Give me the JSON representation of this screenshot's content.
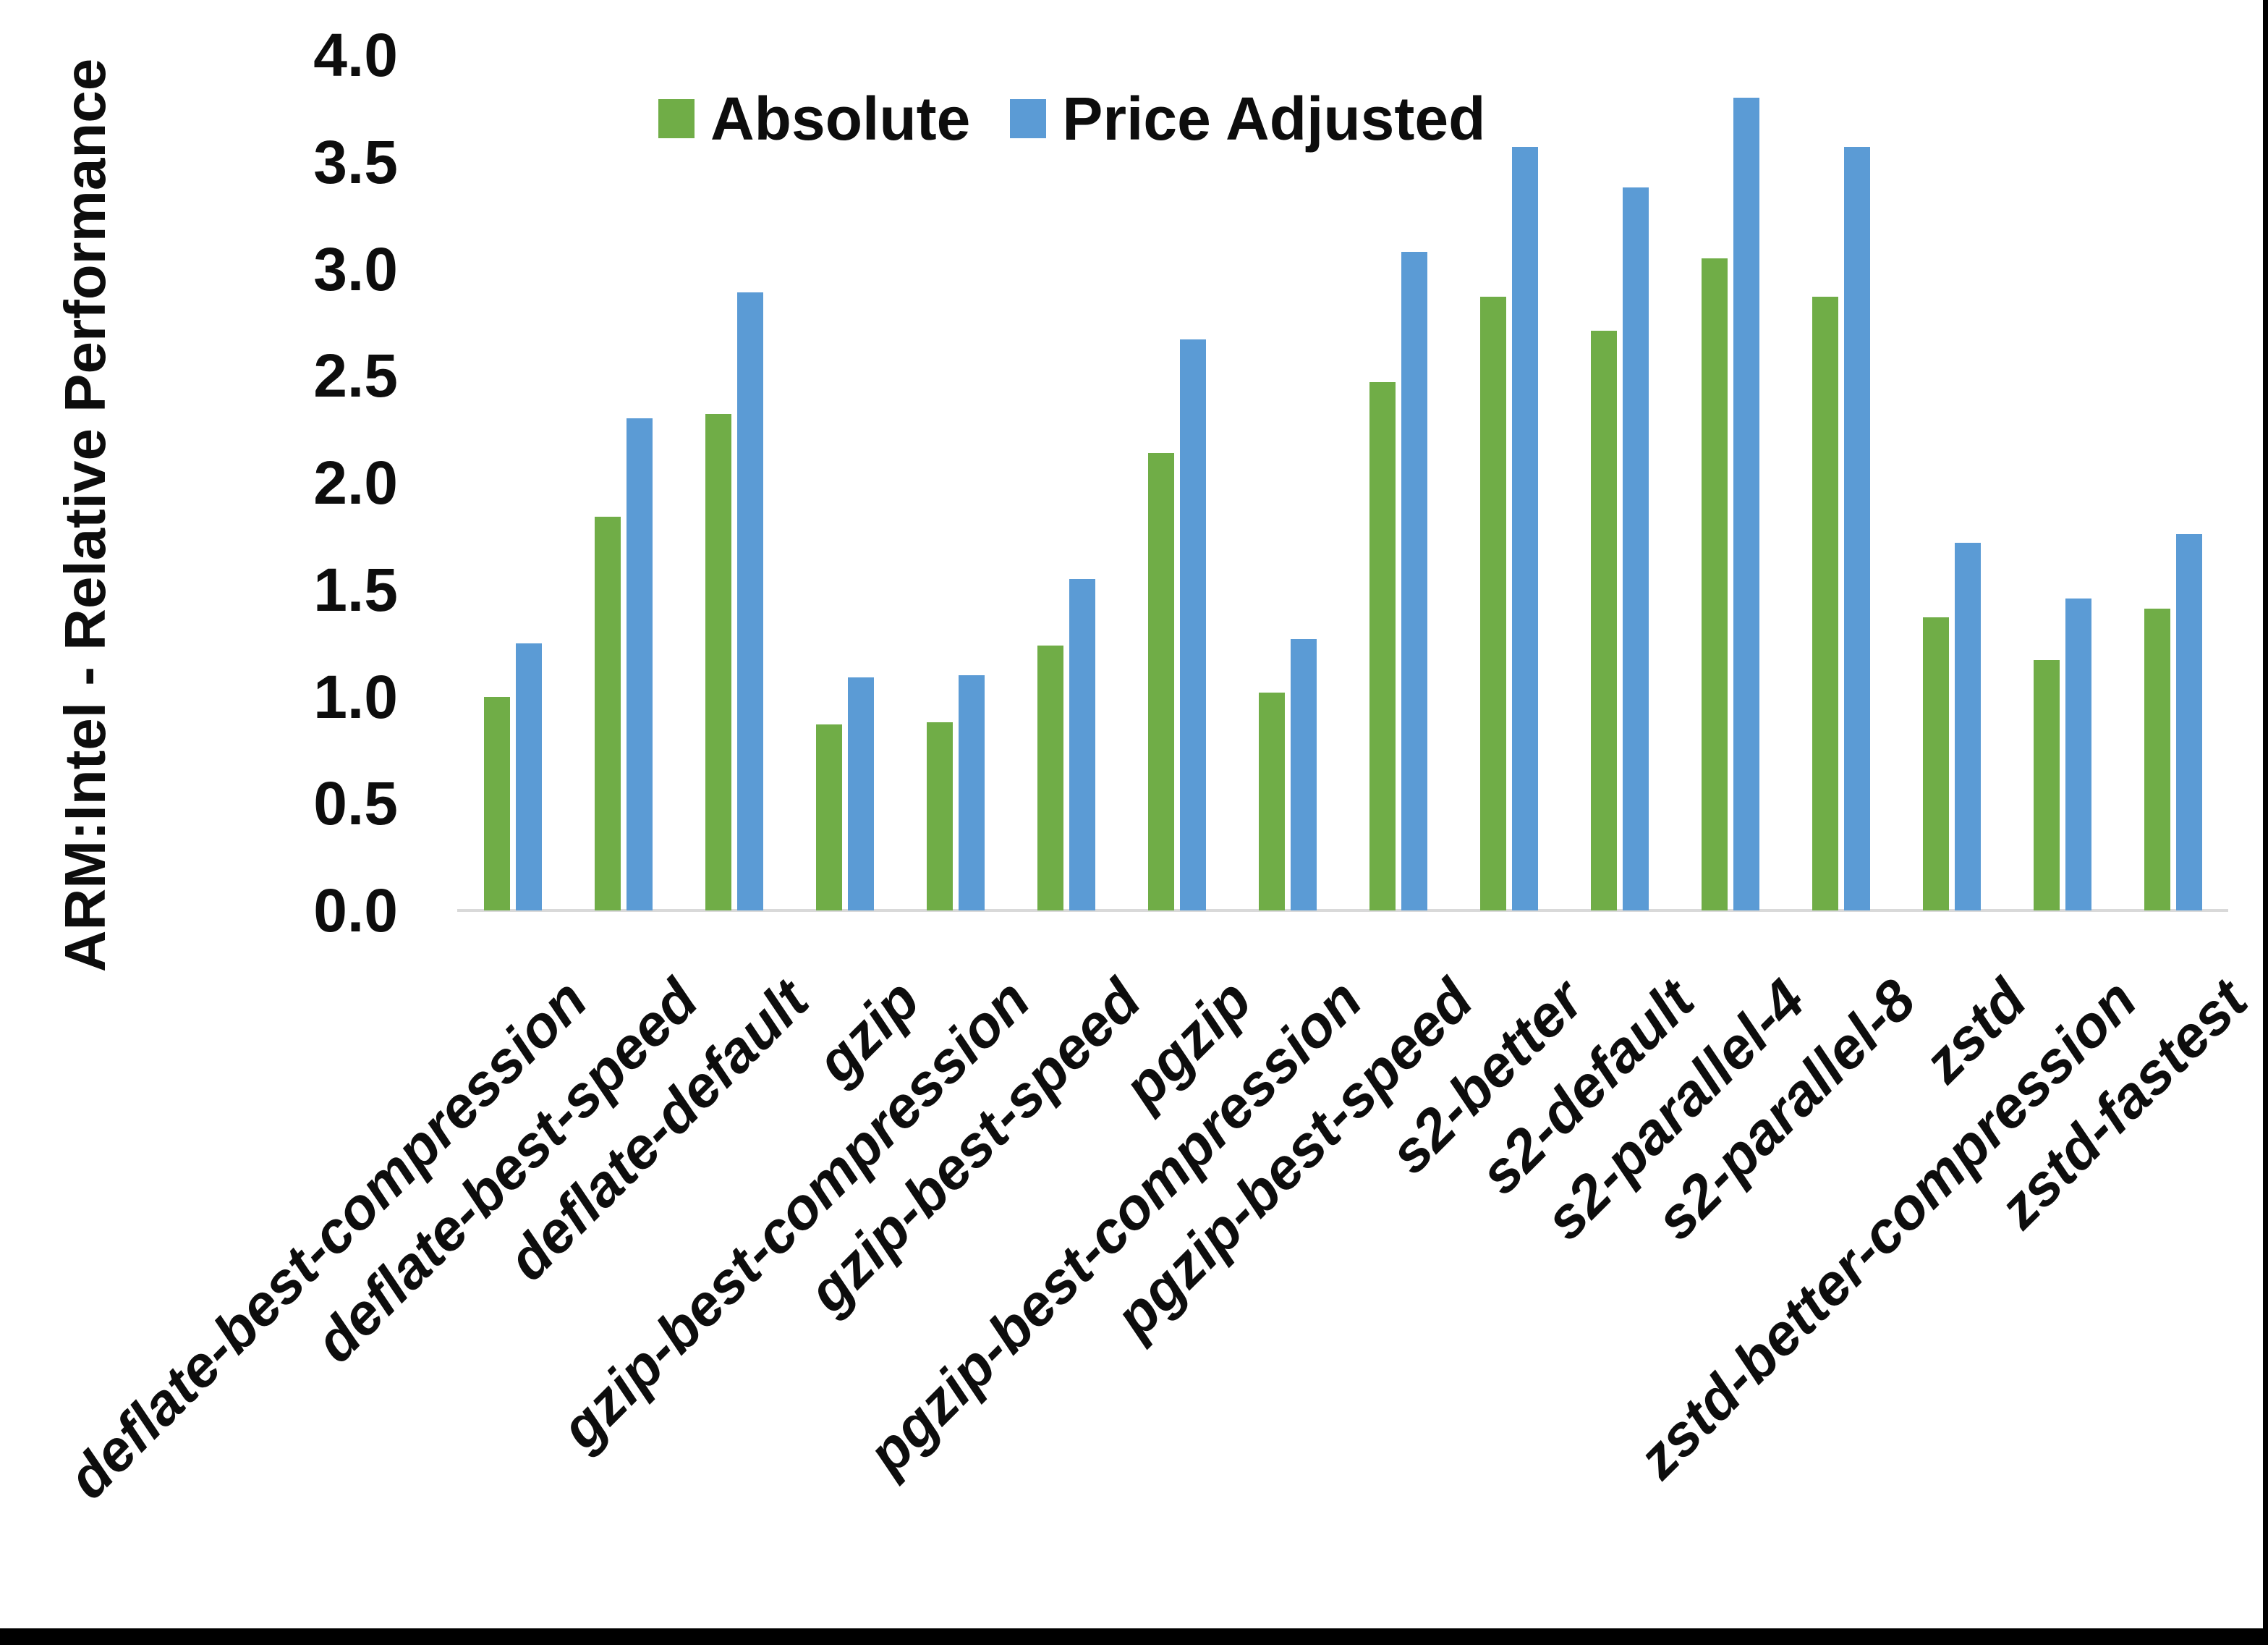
{
  "y_axis": {
    "title": "ARM:Intel - Relative Performance",
    "tick_labels": [
      "0.0",
      "0.5",
      "1.0",
      "1.5",
      "2.0",
      "2.5",
      "3.0",
      "3.5",
      "4.0"
    ],
    "min": 0.0,
    "max": 4.0
  },
  "legend": {
    "items": [
      {
        "label": "Absolute",
        "color": "#70AD47"
      },
      {
        "label": "Price Adjusted",
        "color": "#5B9BD5"
      }
    ]
  },
  "chart_data": {
    "type": "bar",
    "title": "",
    "ylabel": "ARM:Intel - Relative Performance",
    "xlabel": "",
    "ylim": [
      0.0,
      4.0
    ],
    "yticks": [
      0.0,
      0.5,
      1.0,
      1.5,
      2.0,
      2.5,
      3.0,
      3.5,
      4.0
    ],
    "grid": false,
    "legend_position": "top-center",
    "categories": [
      "deflate-best-compression",
      "deflate-best-speed",
      "deflate-default",
      "gzip",
      "gzip-best-compression",
      "gzip-best-speed",
      "pgzip",
      "pgzip-best-compression",
      "pgzip-best-speed",
      "s2-better",
      "s2-default",
      "s2-parallel-4",
      "s2-parallel-8",
      "zstd",
      "zstd-better-compression",
      "zstd-fastest"
    ],
    "series": [
      {
        "name": "Absolute",
        "color": "#70AD47",
        "values": [
          1.0,
          1.84,
          2.32,
          0.87,
          0.88,
          1.24,
          2.14,
          1.02,
          2.47,
          2.87,
          2.71,
          3.05,
          2.87,
          1.37,
          1.17,
          1.41
        ]
      },
      {
        "name": "Price Adjusted",
        "color": "#5B9BD5",
        "values": [
          1.25,
          2.3,
          2.89,
          1.09,
          1.1,
          1.55,
          2.67,
          1.27,
          3.08,
          3.57,
          3.38,
          3.8,
          3.57,
          1.72,
          1.46,
          1.76
        ]
      }
    ]
  },
  "colors": {
    "axis_line": "#D9D9D9",
    "text": "#0D0D0D",
    "background": "#FFFFFF",
    "frame": "#000000"
  }
}
